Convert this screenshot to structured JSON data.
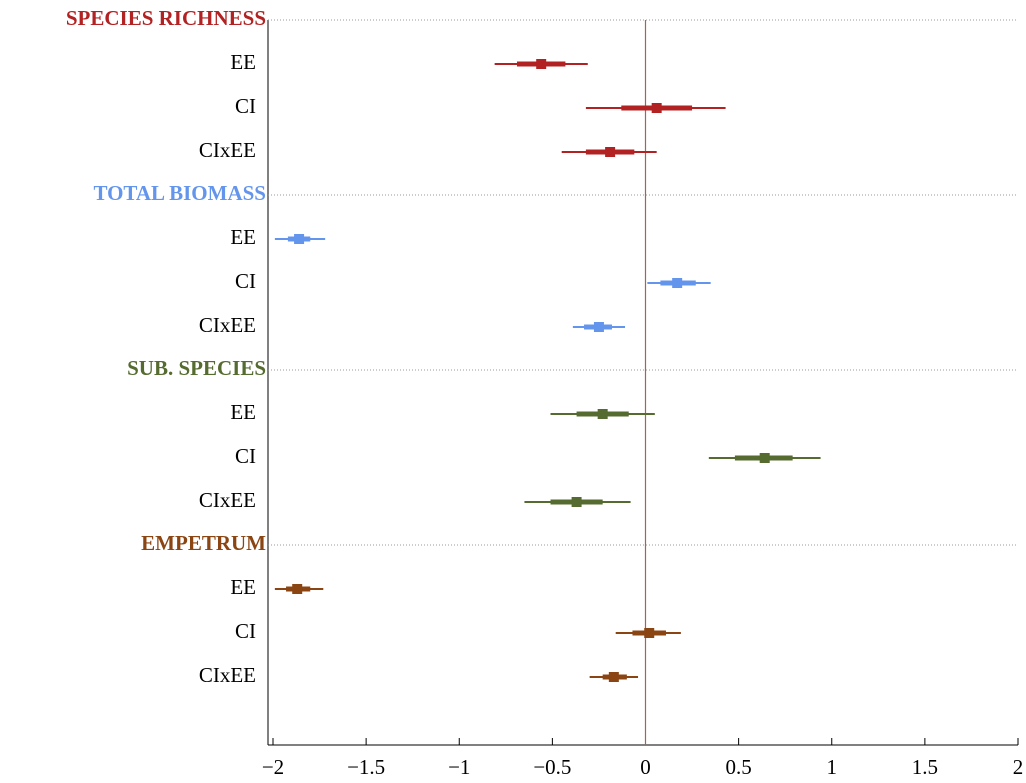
{
  "chart_data": {
    "type": "forest",
    "xlim": [
      -2,
      2
    ],
    "xticks": [
      {
        "value": -2,
        "label": "−2"
      },
      {
        "value": -1.5,
        "label": "−1.5"
      },
      {
        "value": -1,
        "label": "−1"
      },
      {
        "value": -0.5,
        "label": "−0.5"
      },
      0,
      0.5,
      1,
      1.5,
      2
    ],
    "reference_line": 0,
    "groups": [
      {
        "name": "SPECIES RICHNESS",
        "color": "#b22222",
        "rows": [
          {
            "label": "EE",
            "estimate": -0.56,
            "inner": [
              -0.69,
              -0.43
            ],
            "outer": [
              -0.81,
              -0.31
            ]
          },
          {
            "label": "CI",
            "estimate": 0.06,
            "inner": [
              -0.13,
              0.25
            ],
            "outer": [
              -0.32,
              0.43
            ]
          },
          {
            "label": "CIxEE",
            "estimate": -0.19,
            "inner": [
              -0.32,
              -0.06
            ],
            "outer": [
              -0.45,
              0.06
            ]
          }
        ]
      },
      {
        "name": "TOTAL BIOMASS",
        "color": "#6495ed",
        "rows": [
          {
            "label": "EE",
            "estimate": -1.86,
            "inner": [
              -1.92,
              -1.8
            ],
            "outer": [
              -1.99,
              -1.72
            ]
          },
          {
            "label": "CI",
            "estimate": 0.17,
            "inner": [
              0.08,
              0.27
            ],
            "outer": [
              0.01,
              0.35
            ]
          },
          {
            "label": "CIxEE",
            "estimate": -0.25,
            "inner": [
              -0.33,
              -0.18
            ],
            "outer": [
              -0.39,
              -0.11
            ]
          }
        ]
      },
      {
        "name": "SUB. SPECIES",
        "color": "#556b2f",
        "rows": [
          {
            "label": "EE",
            "estimate": -0.23,
            "inner": [
              -0.37,
              -0.09
            ],
            "outer": [
              -0.51,
              0.05
            ]
          },
          {
            "label": "CI",
            "estimate": 0.64,
            "inner": [
              0.48,
              0.79
            ],
            "outer": [
              0.34,
              0.94
            ]
          },
          {
            "label": "CIxEE",
            "estimate": -0.37,
            "inner": [
              -0.51,
              -0.23
            ],
            "outer": [
              -0.65,
              -0.08
            ]
          }
        ]
      },
      {
        "name": "EMPETRUM",
        "color": "#8b4513",
        "rows": [
          {
            "label": "EE",
            "estimate": -1.87,
            "inner": [
              -1.93,
              -1.8
            ],
            "outer": [
              -1.99,
              -1.73
            ]
          },
          {
            "label": "CI",
            "estimate": 0.02,
            "inner": [
              -0.07,
              0.11
            ],
            "outer": [
              -0.16,
              0.19
            ]
          },
          {
            "label": "CIxEE",
            "estimate": -0.17,
            "inner": [
              -0.23,
              -0.1
            ],
            "outer": [
              -0.3,
              -0.04
            ]
          }
        ]
      }
    ]
  }
}
